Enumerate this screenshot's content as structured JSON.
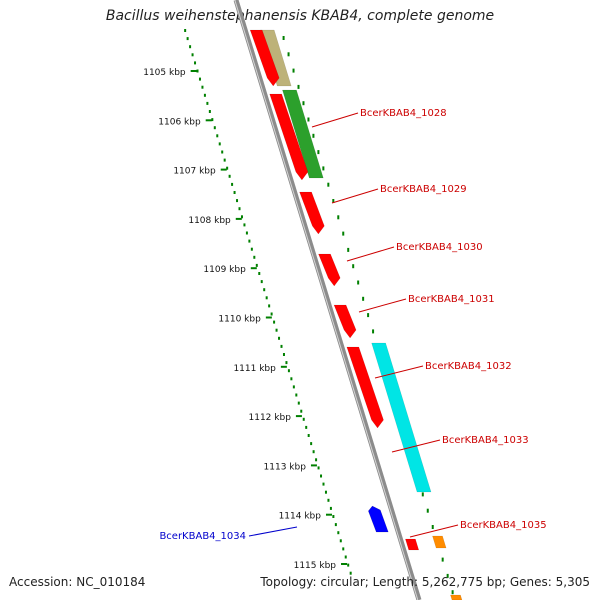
{
  "title": "Bacillus weihenstephanensis KBAB4, complete genome",
  "footer": {
    "accession": "Accession: NC_010184",
    "stats": "Topology: circular; Length: 5,262,775 bp; Genes: 5,305"
  },
  "ruler": {
    "unit": "kbp",
    "labels": [
      "1105 kbp",
      "1106 kbp",
      "1107 kbp",
      "1108 kbp",
      "1109 kbp",
      "1110 kbp",
      "1111 kbp",
      "1112 kbp",
      "1113 kbp",
      "1114 kbp",
      "1115 kbp"
    ]
  },
  "genes": [
    {
      "label": "BcerKBAB4_1028",
      "strand": "+",
      "color": "#ff0000"
    },
    {
      "label": "BcerKBAB4_1029",
      "strand": "+",
      "color": "#ff0000"
    },
    {
      "label": "BcerKBAB4_1030",
      "strand": "+",
      "color": "#ff0000"
    },
    {
      "label": "BcerKBAB4_1031",
      "strand": "+",
      "color": "#ff0000"
    },
    {
      "label": "BcerKBAB4_1032",
      "strand": "+",
      "color": "#ff0000"
    },
    {
      "label": "BcerKBAB4_1033",
      "strand": "+",
      "color": "#ff0000"
    },
    {
      "label": "BcerKBAB4_1034",
      "strand": "-",
      "color": "#0000ff"
    },
    {
      "label": "BcerKBAB4_1035",
      "strand": "+",
      "color": "#ff0000"
    }
  ],
  "colors": {
    "backbone": "#8c8c8c",
    "ticks": "#008000",
    "label_plus": "#cc0000",
    "label_minus": "#0000cc",
    "feature_tan": "#bdb279",
    "feature_green": "#2ca02c",
    "feature_cyan": "#00e5e5",
    "feature_orange": "#ff8c00"
  }
}
